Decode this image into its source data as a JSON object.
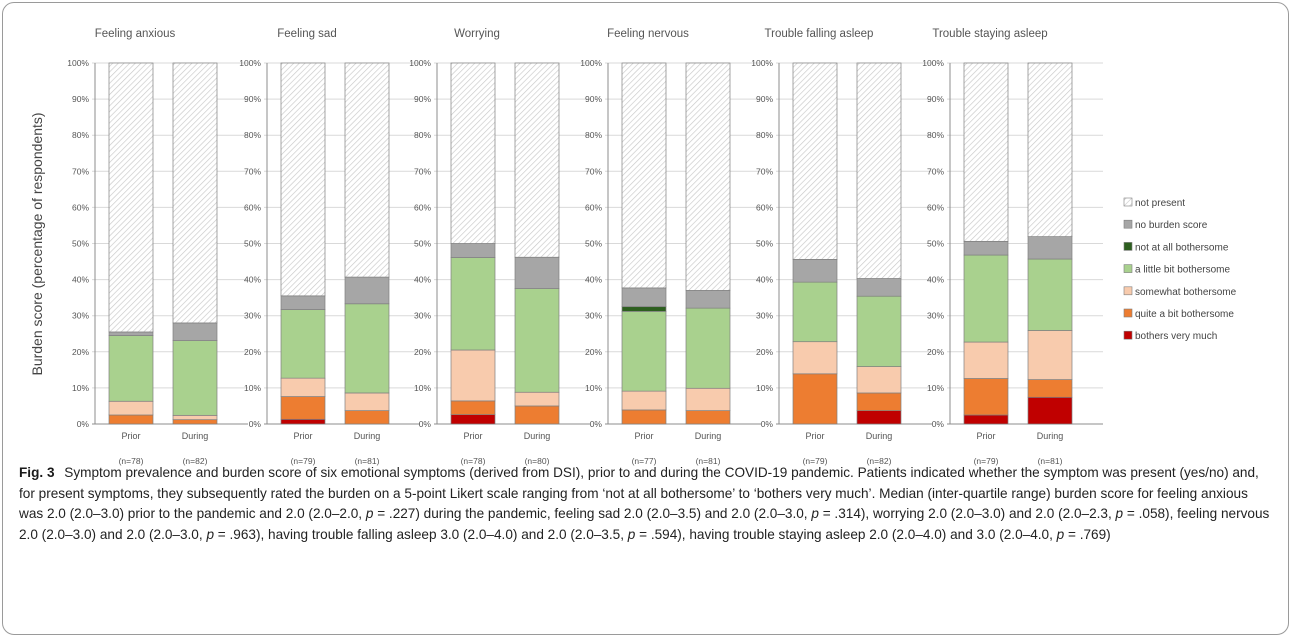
{
  "chart_data": {
    "type": "bar",
    "stacked": true,
    "ylabel": "Burden score (percentage of respondents)",
    "yticks": [
      "0%",
      "10%",
      "20%",
      "30%",
      "40%",
      "50%",
      "60%",
      "70%",
      "80%",
      "90%",
      "100%"
    ],
    "ylim": [
      0,
      100
    ],
    "legend_position": "right",
    "categories_order": [
      "bothers very much",
      "quite a bit bothersome",
      "somewhat bothersome",
      "a little bit bothersome",
      "not at all bothersome",
      "no burden score",
      "not present"
    ],
    "legend": [
      {
        "label": "not present",
        "color": "#ffffff",
        "hatched": true
      },
      {
        "label": "no burden score",
        "color": "#a6a6a6"
      },
      {
        "label": "not at all bothersome",
        "color": "#2d5f1f"
      },
      {
        "label": "a little bit bothersome",
        "color": "#a9d18e"
      },
      {
        "label": "somewhat bothersome",
        "color": "#f8cbad"
      },
      {
        "label": "quite a bit bothersome",
        "color": "#ed7d31"
      },
      {
        "label": "bothers very much",
        "color": "#c00000"
      }
    ],
    "panels": [
      {
        "title": "Feeling anxious",
        "bars": [
          {
            "label": "Prior",
            "n": "(n=78)",
            "values": [
              0,
              2.5,
              3.8,
              18.2,
              0,
              1.0,
              74.5
            ]
          },
          {
            "label": "During",
            "n": "(n=82)",
            "values": [
              0,
              1.2,
              1.2,
              20.7,
              0,
              4.9,
              72.0
            ]
          }
        ]
      },
      {
        "title": "Feeling sad",
        "bars": [
          {
            "label": "Prior",
            "n": "(n=79)",
            "values": [
              1.3,
              6.3,
              5.1,
              19.0,
              0,
              3.8,
              64.5
            ]
          },
          {
            "label": "During",
            "n": "(n=81)",
            "values": [
              0,
              3.7,
              4.9,
              24.7,
              0,
              7.4,
              59.3
            ]
          }
        ]
      },
      {
        "title": "Worrying",
        "bars": [
          {
            "label": "Prior",
            "n": "(n=78)",
            "values": [
              2.6,
              3.8,
              14.1,
              25.6,
              0,
              3.9,
              50.0
            ]
          },
          {
            "label": "During",
            "n": "(n=80)",
            "values": [
              0,
              5.0,
              3.8,
              28.7,
              0,
              8.7,
              53.8
            ]
          }
        ]
      },
      {
        "title": "Feeling nervous",
        "bars": [
          {
            "label": "Prior",
            "n": "(n=77)",
            "values": [
              0,
              3.9,
              5.2,
              22.1,
              1.3,
              5.2,
              62.3
            ]
          },
          {
            "label": "During",
            "n": "(n=81)",
            "values": [
              0,
              3.7,
              6.2,
              22.2,
              0,
              4.9,
              63.0
            ]
          }
        ]
      },
      {
        "title": "Trouble falling asleep",
        "bars": [
          {
            "label": "Prior",
            "n": "(n=79)",
            "values": [
              0,
              13.9,
              8.9,
              16.5,
              0,
              6.3,
              54.4
            ]
          },
          {
            "label": "During",
            "n": "(n=82)",
            "values": [
              3.7,
              4.9,
              7.3,
              19.5,
              0,
              4.9,
              59.7
            ]
          }
        ]
      },
      {
        "title": "Trouble staying asleep",
        "bars": [
          {
            "label": "Prior",
            "n": "(n=79)",
            "values": [
              2.5,
              10.1,
              10.1,
              24.1,
              0,
              3.8,
              49.4
            ]
          },
          {
            "label": "During",
            "n": "(n=81)",
            "values": [
              7.4,
              4.9,
              13.6,
              19.8,
              0,
              6.2,
              48.1
            ]
          }
        ]
      }
    ]
  },
  "caption": {
    "label": "Fig. 3",
    "segments": [
      {
        "t": "Symptom prevalence and burden score of six emotional symptoms (derived from DSI), prior to and during the COVID-19 pandemic. Patients indicated whether the symptom was present (yes/no) and, for present symptoms, they subsequently rated the burden on a 5-point Likert scale ranging from ‘not at all bothersome’ to ‘bothers very much’. Median (inter-quartile range) burden score for feeling anxious was 2.0 (2.0–3.0) prior to the pandemic and 2.0 (2.0–2.0, "
      },
      {
        "t": "p",
        "i": true
      },
      {
        "t": " = .227) during the pandemic, feeling sad 2.0 (2.0–3.5) and 2.0 (2.0–3.0, "
      },
      {
        "t": "p",
        "i": true
      },
      {
        "t": " = .314), worrying 2.0 (2.0–3.0) and 2.0 (2.0–2.3, "
      },
      {
        "t": "p",
        "i": true
      },
      {
        "t": " = .058), feeling nervous 2.0 (2.0–3.0) and 2.0 (2.0–3.0, "
      },
      {
        "t": "p",
        "i": true
      },
      {
        "t": " = .963), having trouble falling asleep 3.0 (2.0–4.0) and 2.0 (2.0–3.5, "
      },
      {
        "t": "p",
        "i": true
      },
      {
        "t": " = .594), having trouble staying asleep 2.0 (2.0–4.0) and 3.0 (2.0–4.0, "
      },
      {
        "t": "p",
        "i": true
      },
      {
        "t": " = .769)"
      }
    ]
  }
}
